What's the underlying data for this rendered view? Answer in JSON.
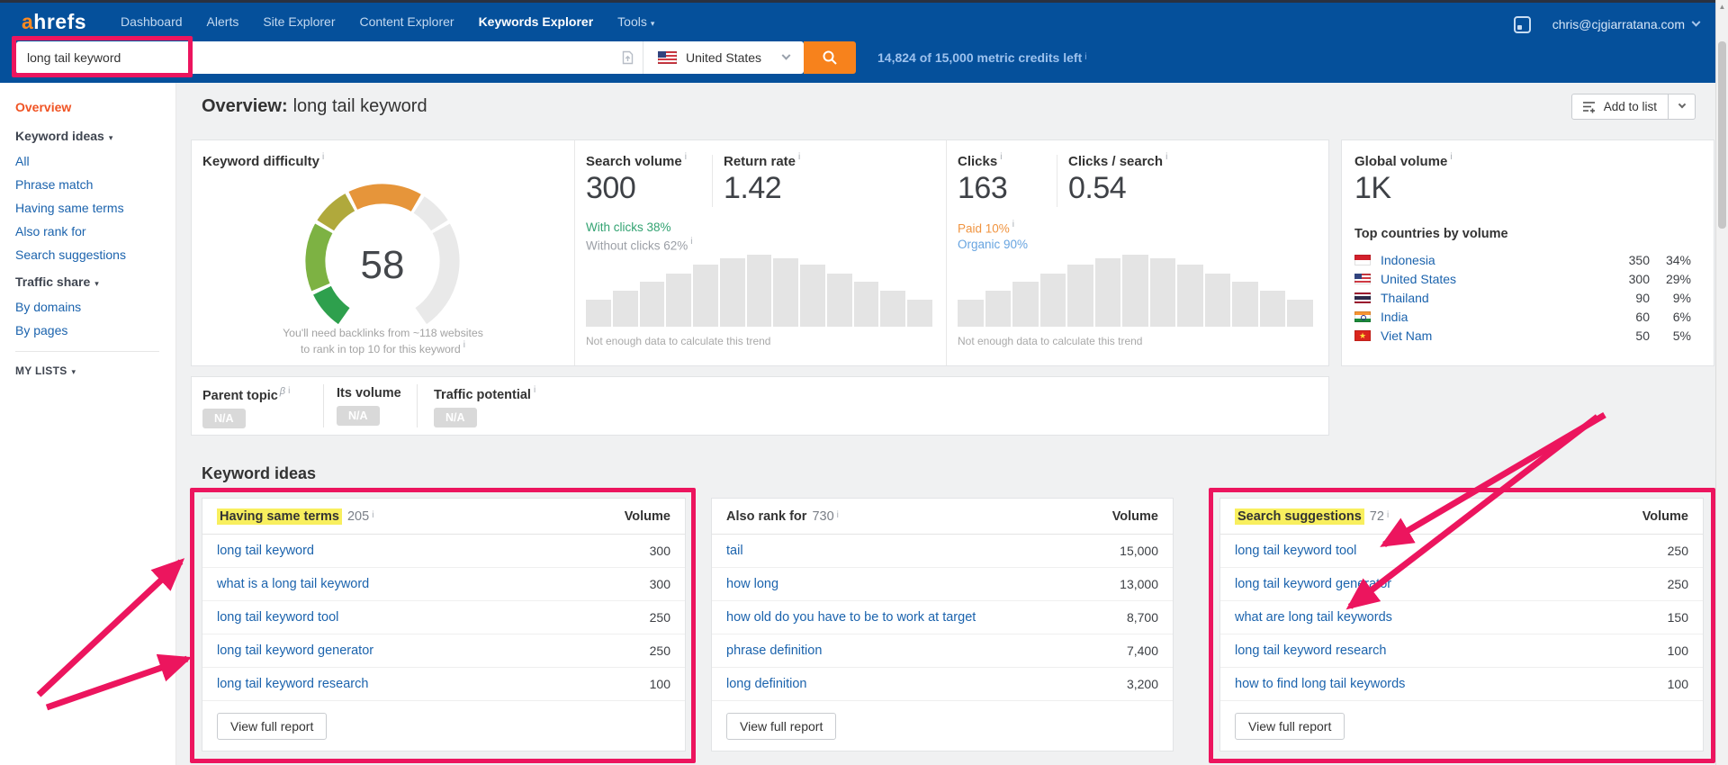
{
  "colors": {
    "topbar_blue": "#05509b",
    "logo_orange": "#ff8a21",
    "accent_orange": "#f7821c",
    "annotation_pink": "#ec155e",
    "highlight_yellow": "#f8ef5e",
    "link_blue": "#1b63ad",
    "active_orange": "#f05323",
    "nav_link": "#c3d9f0",
    "credits_blue": "#9dc2ee",
    "success_green": "#33a372",
    "paid_orange": "#f09440",
    "organic_blue": "#67a4e0",
    "bar_gray": "#e4e4e4",
    "badge_gray": "#d9d9d9",
    "gauge_green_1": "#2ea04d",
    "gauge_green_2": "#7db243",
    "gauge_olive": "#b0a93c",
    "gauge_orange": "#e6953a",
    "gauge_gray": "#e9e9e9"
  },
  "glyphs": {
    "info": "i",
    "caret": "▾",
    "beta": "β",
    "up_arrow": "▲"
  },
  "nav": {
    "logo_a": "a",
    "logo_rest": "hrefs",
    "items": [
      {
        "label": "Dashboard"
      },
      {
        "label": "Alerts"
      },
      {
        "label": "Site Explorer"
      },
      {
        "label": "Content Explorer"
      },
      {
        "label": "Keywords Explorer",
        "active": true
      },
      {
        "label": "Tools",
        "caret": true
      }
    ],
    "user_email": "chris@cjgiarratana.com"
  },
  "search": {
    "value": "long tail keyword",
    "country": "United States",
    "credits": "14,824 of 15,000 metric credits left"
  },
  "sidebar": {
    "items": [
      {
        "label": "Overview",
        "type": "active"
      },
      {
        "label": "Keyword ideas",
        "type": "group",
        "caret": true
      },
      {
        "label": "All",
        "type": "link"
      },
      {
        "label": "Phrase match",
        "type": "link"
      },
      {
        "label": "Having same terms",
        "type": "link"
      },
      {
        "label": "Also rank for",
        "type": "link"
      },
      {
        "label": "Search suggestions",
        "type": "link"
      },
      {
        "label": "Traffic share",
        "type": "group",
        "caret": true
      },
      {
        "label": "By domains",
        "type": "link"
      },
      {
        "label": "By pages",
        "type": "link"
      },
      {
        "type": "divider"
      },
      {
        "label": "MY LISTS",
        "type": "caps",
        "caret": true
      }
    ]
  },
  "page": {
    "title_prefix": "Overview:",
    "title_keyword": "long tail keyword",
    "add_to_list": "Add to list"
  },
  "metrics": {
    "keyword_difficulty": {
      "label": "Keyword difficulty",
      "value": "58",
      "note_line1": "You'll need backlinks from ~118 websites",
      "note_line2": "to rank in top 10 for this keyword"
    },
    "search_volume": {
      "label": "Search volume",
      "value": "300",
      "with_clicks": "With clicks 38%",
      "without_clicks": "Without clicks 62%"
    },
    "return_rate": {
      "label": "Return rate",
      "value": "1.42"
    },
    "clicks": {
      "label": "Clicks",
      "value": "163",
      "paid": "Paid 10%",
      "organic": "Organic 90%"
    },
    "clicks_per_search": {
      "label": "Clicks / search",
      "value": "0.54"
    },
    "trend_note": "Not enough data to calculate this trend",
    "trend_bars": [
      0.38,
      0.5,
      0.62,
      0.74,
      0.86,
      0.95,
      1,
      0.95,
      0.86,
      0.74,
      0.62,
      0.5,
      0.38
    ],
    "global_volume": {
      "label": "Global volume",
      "value": "1K"
    },
    "top_countries": {
      "title": "Top countries by volume",
      "rows": [
        {
          "country": "Indonesia",
          "flag": "id",
          "volume": "350",
          "percent": "34%"
        },
        {
          "country": "United States",
          "flag": "us",
          "volume": "300",
          "percent": "29%"
        },
        {
          "country": "Thailand",
          "flag": "th",
          "volume": "90",
          "percent": "9%"
        },
        {
          "country": "India",
          "flag": "in",
          "volume": "60",
          "percent": "6%"
        },
        {
          "country": "Viet Nam",
          "flag": "vn",
          "volume": "50",
          "percent": "5%"
        }
      ]
    }
  },
  "parent_topic": {
    "columns": [
      {
        "label": "Parent topic",
        "beta": true,
        "info": true,
        "value": "N/A"
      },
      {
        "label": "Its volume",
        "value": "N/A"
      },
      {
        "label": "Traffic potential",
        "info": true,
        "value": "N/A"
      }
    ]
  },
  "keyword_ideas": {
    "title": "Keyword ideas",
    "volume_header": "Volume",
    "view_full_report": "View full report",
    "tables": [
      {
        "name": "having-same-terms",
        "title": "Having same terms",
        "count": "205",
        "highlighted": true,
        "rows": [
          {
            "keyword": "long tail keyword",
            "volume": "300"
          },
          {
            "keyword": "what is a long tail keyword",
            "volume": "300"
          },
          {
            "keyword": "long tail keyword tool",
            "volume": "250"
          },
          {
            "keyword": "long tail keyword generator",
            "volume": "250"
          },
          {
            "keyword": "long tail keyword research",
            "volume": "100"
          }
        ]
      },
      {
        "name": "also-rank-for",
        "title": "Also rank for",
        "count": "730",
        "highlighted": false,
        "rows": [
          {
            "keyword": "tail",
            "volume": "15,000"
          },
          {
            "keyword": "how long",
            "volume": "13,000"
          },
          {
            "keyword": "how old do you have to be to work at target",
            "volume": "8,700"
          },
          {
            "keyword": "phrase definition",
            "volume": "7,400"
          },
          {
            "keyword": "long definition",
            "volume": "3,200"
          }
        ]
      },
      {
        "name": "search-suggestions",
        "title": "Search suggestions",
        "count": "72",
        "highlighted": true,
        "rows": [
          {
            "keyword": "long tail keyword tool",
            "volume": "250"
          },
          {
            "keyword": "long tail keyword generator",
            "volume": "250"
          },
          {
            "keyword": "what are long tail keywords",
            "volume": "150"
          },
          {
            "keyword": "long tail keyword research",
            "volume": "100"
          },
          {
            "keyword": "how to find long tail keywords",
            "volume": "100"
          }
        ]
      }
    ]
  }
}
